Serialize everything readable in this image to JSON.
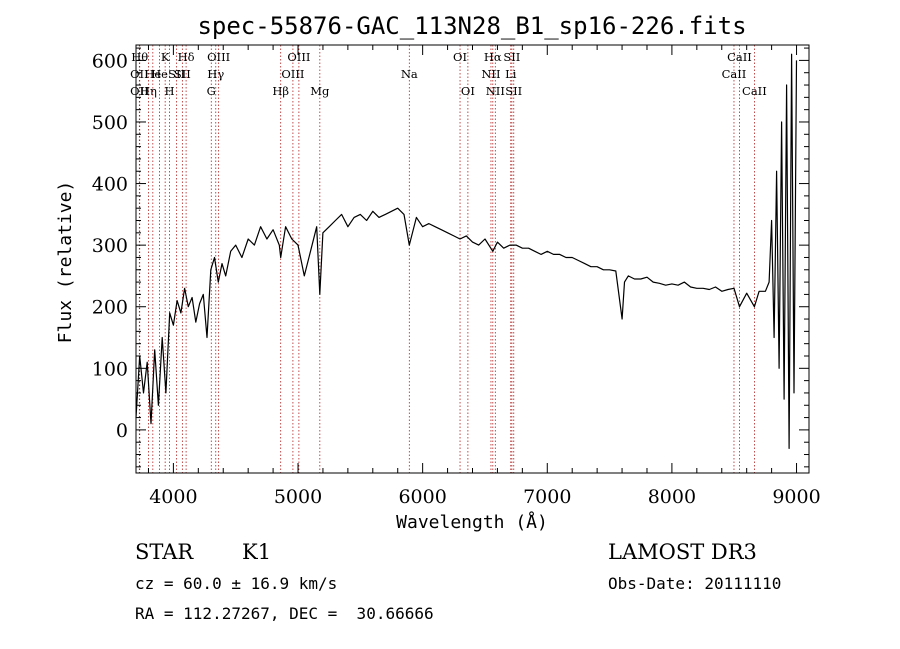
{
  "chart_data": {
    "type": "line",
    "title": "spec-55876-GAC_113N28_B1_sp16-226.fits",
    "xlabel": "Wavelength (Å)",
    "ylabel": "Flux (relative)",
    "xlim": [
      3700,
      9100
    ],
    "ylim": [
      -70,
      625
    ],
    "xticks": [
      4000,
      5000,
      6000,
      7000,
      8000,
      9000
    ],
    "yticks": [
      0,
      100,
      200,
      300,
      400,
      500,
      600
    ],
    "grid": false,
    "line_color": "#000000",
    "marker_color": "#b22222",
    "series": [
      {
        "x": [
          3700,
          3730,
          3760,
          3790,
          3820,
          3850,
          3880,
          3910,
          3940,
          3970,
          4000,
          4030,
          4060,
          4090,
          4120,
          4150,
          4180,
          4210,
          4240,
          4270,
          4300,
          4330,
          4360,
          4390,
          4420,
          4460,
          4500,
          4550,
          4600,
          4650,
          4700,
          4750,
          4800,
          4850,
          4861,
          4900,
          4950,
          5000,
          5050,
          5100,
          5150,
          5175,
          5200,
          5250,
          5300,
          5350,
          5400,
          5450,
          5500,
          5550,
          5600,
          5650,
          5700,
          5750,
          5800,
          5850,
          5893,
          5950,
          6000,
          6050,
          6100,
          6150,
          6200,
          6250,
          6300,
          6350,
          6400,
          6450,
          6500,
          6563,
          6600,
          6650,
          6700,
          6750,
          6800,
          6850,
          6900,
          6950,
          7000,
          7050,
          7100,
          7150,
          7200,
          7250,
          7300,
          7350,
          7400,
          7450,
          7500,
          7550,
          7600,
          7620,
          7650,
          7700,
          7750,
          7800,
          7850,
          7900,
          7950,
          8000,
          8050,
          8100,
          8150,
          8200,
          8250,
          8300,
          8350,
          8400,
          8450,
          8498,
          8542,
          8600,
          8662,
          8700,
          8750,
          8780,
          8800,
          8820,
          8840,
          8860,
          8880,
          8900,
          8920,
          8940,
          8960,
          8980,
          9000
        ],
        "y": [
          20,
          120,
          60,
          110,
          10,
          130,
          40,
          150,
          60,
          190,
          170,
          210,
          190,
          230,
          200,
          215,
          175,
          205,
          220,
          150,
          260,
          280,
          240,
          270,
          250,
          290,
          300,
          280,
          310,
          300,
          330,
          310,
          325,
          300,
          280,
          330,
          310,
          300,
          250,
          290,
          330,
          220,
          320,
          330,
          340,
          350,
          330,
          345,
          350,
          340,
          355,
          345,
          350,
          355,
          360,
          350,
          300,
          345,
          330,
          335,
          330,
          325,
          320,
          315,
          310,
          315,
          305,
          300,
          310,
          290,
          305,
          295,
          300,
          300,
          295,
          295,
          290,
          285,
          290,
          285,
          285,
          280,
          280,
          275,
          270,
          265,
          265,
          260,
          260,
          258,
          180,
          240,
          250,
          245,
          245,
          248,
          240,
          238,
          235,
          237,
          235,
          240,
          232,
          230,
          230,
          228,
          232,
          225,
          228,
          230,
          200,
          222,
          200,
          225,
          225,
          240,
          340,
          150,
          420,
          100,
          500,
          50,
          560,
          -30,
          610,
          60,
          600
        ]
      }
    ],
    "line_markers": [
      {
        "x": 3730,
        "row": 0,
        "label": "Hθ"
      },
      {
        "x": 3727,
        "row": 1,
        "label": "OII"
      },
      {
        "x": 3727,
        "row": 2,
        "label": "OII"
      },
      {
        "x": 3800,
        "row": 2,
        "label": "Hη"
      },
      {
        "x": 3835,
        "row": 1,
        "label": "He"
      },
      {
        "x": 3889,
        "row": 1,
        "label": "He"
      },
      {
        "x": 3934,
        "row": 0,
        "label": "K"
      },
      {
        "x": 3969,
        "row": 2,
        "label": "H"
      },
      {
        "x": 4026,
        "row": 1,
        "label": "SII"
      },
      {
        "x": 4102,
        "row": 0,
        "label": "Hδ"
      },
      {
        "x": 4072,
        "row": 1,
        "label": "SII"
      },
      {
        "x": 4304,
        "row": 2,
        "label": "G"
      },
      {
        "x": 4340,
        "row": 1,
        "label": "Hγ"
      },
      {
        "x": 4363,
        "row": 0,
        "label": "OIII"
      },
      {
        "x": 4861,
        "row": 2,
        "label": "Hβ"
      },
      {
        "x": 4959,
        "row": 1,
        "label": "OIII"
      },
      {
        "x": 5007,
        "row": 0,
        "label": "OIII"
      },
      {
        "x": 5175,
        "row": 2,
        "label": "Mg"
      },
      {
        "x": 5893,
        "row": 1,
        "label": "Na"
      },
      {
        "x": 6300,
        "row": 0,
        "label": "OI"
      },
      {
        "x": 6363,
        "row": 2,
        "label": "OI"
      },
      {
        "x": 6548,
        "row": 1,
        "label": "NII"
      },
      {
        "x": 6563,
        "row": 0,
        "label": "Hα"
      },
      {
        "x": 6583,
        "row": 2,
        "label": "NII"
      },
      {
        "x": 6707,
        "row": 1,
        "label": "Li"
      },
      {
        "x": 6716,
        "row": 0,
        "label": "SII"
      },
      {
        "x": 6731,
        "row": 2,
        "label": "SII"
      },
      {
        "x": 8498,
        "row": 1,
        "label": "CaII"
      },
      {
        "x": 8542,
        "row": 0,
        "label": "CaII"
      },
      {
        "x": 8662,
        "row": 2,
        "label": "CaII"
      }
    ]
  },
  "footer": {
    "object_type": "STAR",
    "subclass": "K1",
    "survey": "LAMOST DR3",
    "redshift": "cz = 60.0 ± 16.9 km/s",
    "obs_date": "Obs-Date: 20111110",
    "coords": "RA = 112.27267, DEC =  30.66666"
  }
}
